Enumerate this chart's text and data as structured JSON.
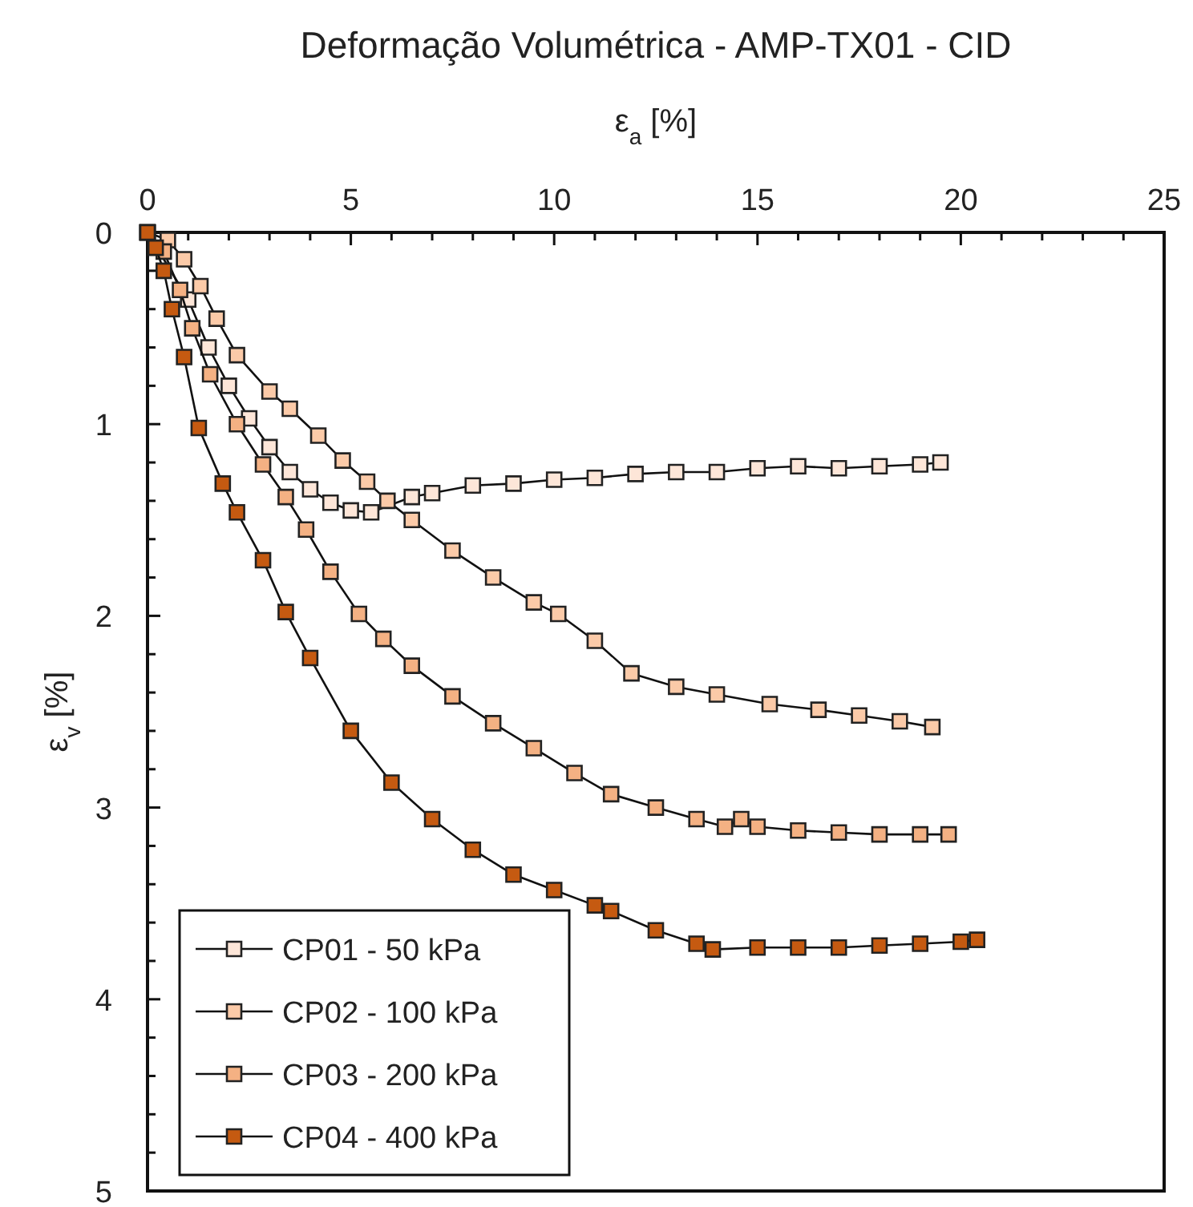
{
  "chart_data": {
    "type": "line",
    "title": "Deformação Volumétrica - AMP-TX01 - CID",
    "xlabel": "ε$_{a}$ [%]",
    "ylabel": "ε$_{v}$ [%]",
    "xlim": [
      0,
      25
    ],
    "ylim": [
      5,
      0
    ],
    "xticks": [
      0,
      {
        "value": 1,
        "label": null
      },
      {
        "value": 2,
        "label": null
      },
      {
        "value": 3,
        "label": null
      },
      {
        "value": 4,
        "label": null
      },
      5,
      {
        "value": 6,
        "label": null
      },
      {
        "value": 7,
        "label": null
      },
      {
        "value": 8,
        "label": null
      },
      {
        "value": 9,
        "label": null
      },
      10,
      {
        "value": 11,
        "label": null
      },
      {
        "value": 12,
        "label": null
      },
      {
        "value": 13,
        "label": null
      },
      {
        "value": 14,
        "label": null
      },
      15,
      {
        "value": 16,
        "label": null
      },
      {
        "value": 17,
        "label": null
      },
      {
        "value": 18,
        "label": null
      },
      {
        "value": 19,
        "label": null
      },
      20,
      {
        "value": 21,
        "label": null
      },
      {
        "value": 22,
        "label": null
      },
      {
        "value": 23,
        "label": null
      },
      {
        "value": 24,
        "label": null
      },
      25
    ],
    "yticks": [
      0,
      {
        "value": 0.2,
        "label": null
      },
      {
        "value": 0.4,
        "label": null
      },
      {
        "value": 0.6,
        "label": null
      },
      {
        "value": 0.8,
        "label": null
      },
      1,
      {
        "value": 1.2,
        "label": null
      },
      {
        "value": 1.4,
        "label": null
      },
      {
        "value": 1.6,
        "label": null
      },
      {
        "value": 1.8,
        "label": null
      },
      2,
      {
        "value": 2.2,
        "label": null
      },
      {
        "value": 2.4,
        "label": null
      },
      {
        "value": 2.6,
        "label": null
      },
      {
        "value": 2.8,
        "label": null
      },
      3,
      {
        "value": 3.2,
        "label": null
      },
      {
        "value": 3.4,
        "label": null
      },
      {
        "value": 3.6,
        "label": null
      },
      {
        "value": 3.8,
        "label": null
      },
      4,
      {
        "value": 4.2,
        "label": null
      },
      {
        "value": 4.4,
        "label": null
      },
      {
        "value": 4.6,
        "label": null
      },
      {
        "value": 4.8,
        "label": null
      },
      5
    ],
    "grid": false,
    "legend": "bottom left",
    "marker": "square",
    "line_style": "solid",
    "series": [
      {
        "name": "CP01 - 50 kPa",
        "color": "#fde6d8",
        "x": [
          0,
          1,
          1.5,
          2,
          2.5,
          3,
          3.5,
          4,
          4.5,
          5,
          5.5,
          6.5,
          7,
          8,
          9,
          10,
          11,
          12,
          13,
          14,
          15,
          16,
          17,
          18,
          19,
          19.5
        ],
        "values": [
          0,
          0.35,
          0.6,
          0.8,
          0.97,
          1.12,
          1.25,
          1.34,
          1.41,
          1.45,
          1.46,
          1.38,
          1.36,
          1.32,
          1.31,
          1.29,
          1.28,
          1.26,
          1.25,
          1.25,
          1.23,
          1.22,
          1.23,
          1.22,
          1.21,
          1.2
        ]
      },
      {
        "name": "CP02 - 100 kPa",
        "color": "#fbcaa8",
        "x": [
          0,
          0.5,
          0.9,
          1.3,
          1.7,
          2.2,
          3,
          3.5,
          4.2,
          4.8,
          5.4,
          5.9,
          6.5,
          7.5,
          8.5,
          9.5,
          10.1,
          11,
          11.9,
          13,
          14,
          15.3,
          16.5,
          17.5,
          18.5,
          19.3
        ],
        "values": [
          0,
          0.04,
          0.14,
          0.28,
          0.45,
          0.64,
          0.83,
          0.92,
          1.06,
          1.19,
          1.3,
          1.4,
          1.5,
          1.66,
          1.8,
          1.93,
          1.99,
          2.13,
          2.3,
          2.37,
          2.41,
          2.46,
          2.49,
          2.52,
          2.55,
          2.58
        ]
      },
      {
        "name": "CP03 - 200 kPa",
        "color": "#f4b183",
        "x": [
          0,
          0.4,
          0.8,
          1.1,
          1.54,
          2.2,
          2.84,
          3.4,
          3.9,
          4.5,
          5.2,
          5.8,
          6.5,
          7.5,
          8.5,
          9.5,
          10.5,
          11.4,
          12.5,
          13.5,
          14.2,
          14.6,
          15,
          16,
          17,
          18,
          19,
          19.7
        ],
        "values": [
          0,
          0.1,
          0.3,
          0.5,
          0.74,
          1.0,
          1.21,
          1.38,
          1.55,
          1.77,
          1.99,
          2.12,
          2.26,
          2.42,
          2.56,
          2.69,
          2.82,
          2.93,
          3.0,
          3.06,
          3.1,
          3.06,
          3.1,
          3.12,
          3.13,
          3.14,
          3.14,
          3.14
        ]
      },
      {
        "name": "CP04 - 400 kPa",
        "color": "#c55a11",
        "x": [
          0,
          0.2,
          0.4,
          0.6,
          0.9,
          1.26,
          1.85,
          2.2,
          2.84,
          3.4,
          4,
          5,
          6,
          7,
          8,
          9,
          10,
          11,
          11.4,
          12.5,
          13.5,
          13.9,
          15,
          16,
          17,
          18,
          19,
          20,
          20.4
        ],
        "values": [
          0,
          0.08,
          0.2,
          0.4,
          0.65,
          1.02,
          1.31,
          1.46,
          1.71,
          1.98,
          2.22,
          2.6,
          2.87,
          3.06,
          3.22,
          3.35,
          3.43,
          3.51,
          3.54,
          3.64,
          3.71,
          3.74,
          3.73,
          3.73,
          3.73,
          3.72,
          3.71,
          3.7,
          3.69
        ]
      }
    ]
  }
}
